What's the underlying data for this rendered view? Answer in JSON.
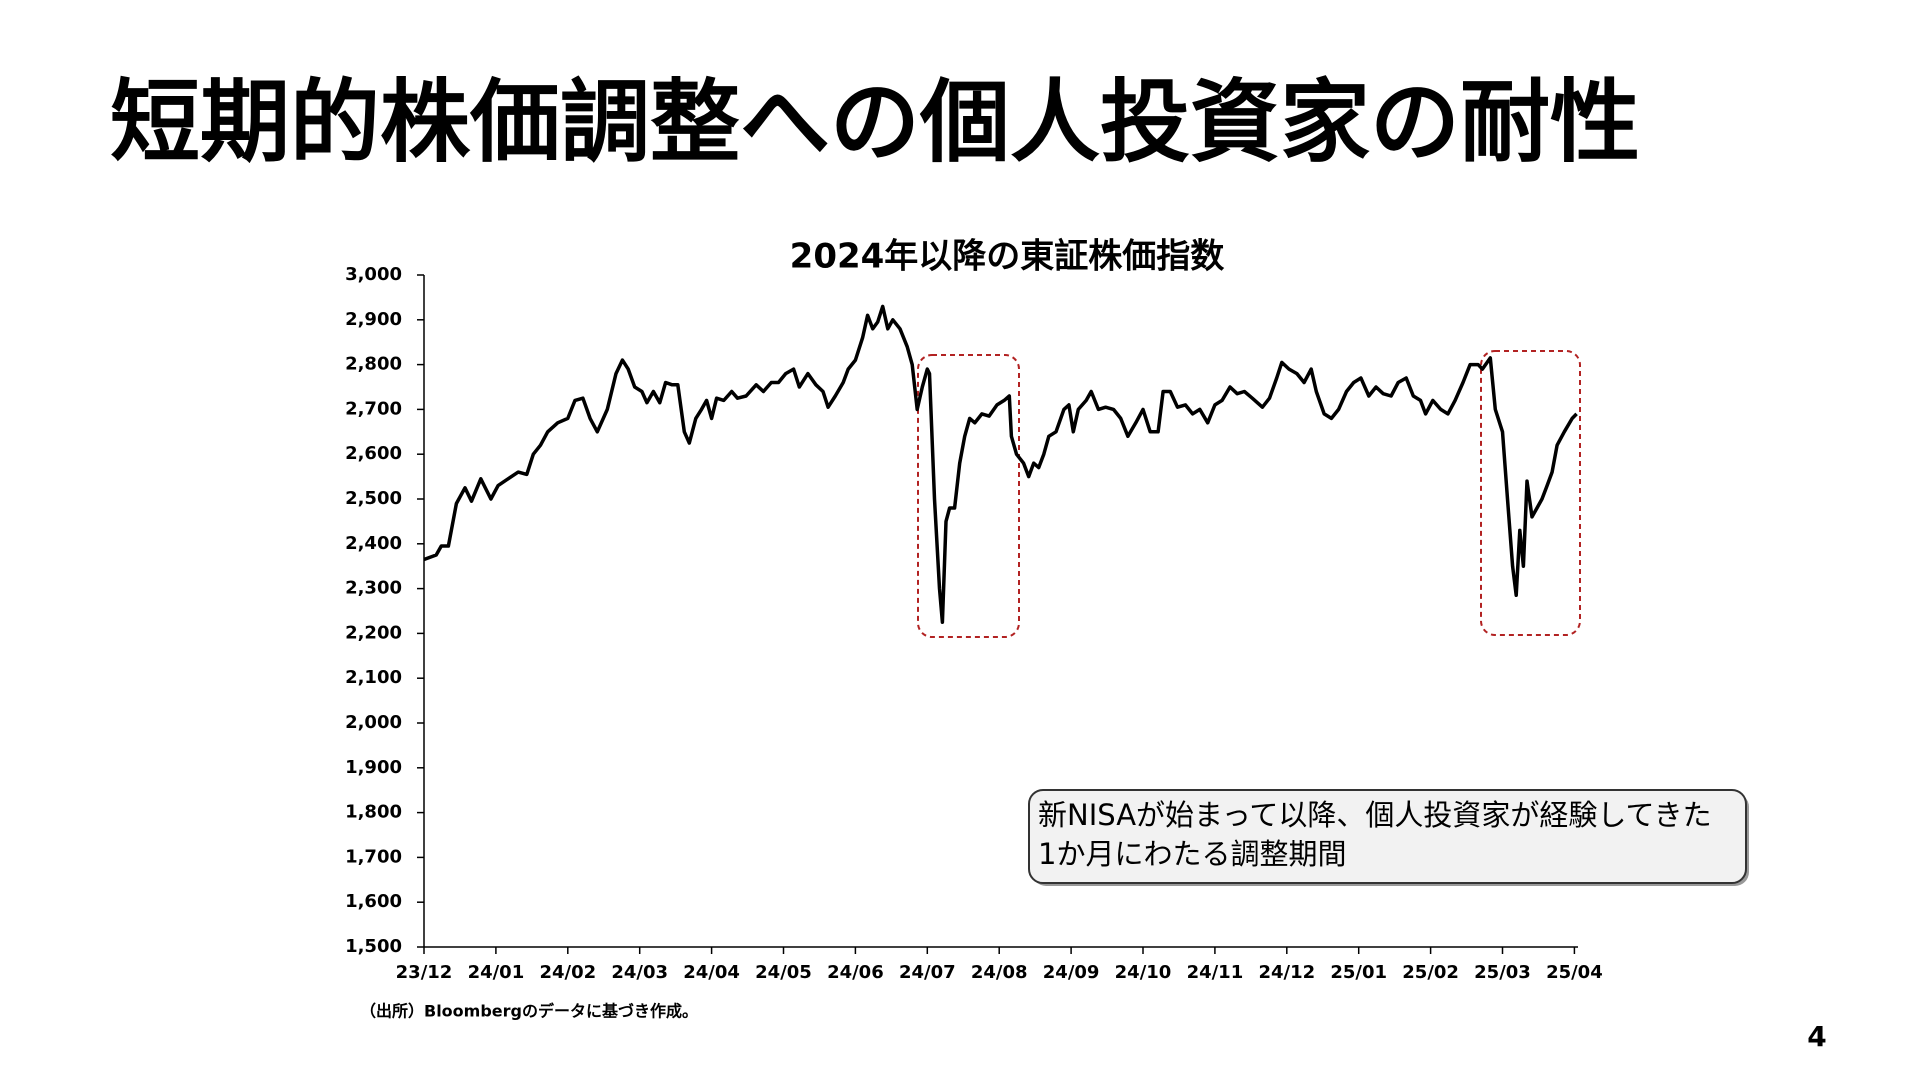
{
  "slide": {
    "title": "短期的株価調整への個人投資家の耐性",
    "source": "（出所）Bloombergのデータに基づき作成。",
    "page_number": 4
  },
  "chart_data": {
    "type": "line",
    "title": "2024年以降の東証株価指数",
    "color": "#000000",
    "annotation": [
      "新NISAが始まって以降、個人投資家が経験してきた",
      "1か月にわたる調整期間"
    ],
    "xlim": [
      0,
      16.05
    ],
    "xticks": [
      {
        "value": 0,
        "label": "23/12"
      },
      {
        "value": 1,
        "label": "24/01"
      },
      {
        "value": 2,
        "label": "24/02"
      },
      {
        "value": 3,
        "label": "24/03"
      },
      {
        "value": 4,
        "label": "24/04"
      },
      {
        "value": 5,
        "label": "24/05"
      },
      {
        "value": 6,
        "label": "24/06"
      },
      {
        "value": 7,
        "label": "24/07"
      },
      {
        "value": 8,
        "label": "24/08"
      },
      {
        "value": 9,
        "label": "24/09"
      },
      {
        "value": 10,
        "label": "24/10"
      },
      {
        "value": 11,
        "label": "24/11"
      },
      {
        "value": 12,
        "label": "24/12"
      },
      {
        "value": 13,
        "label": "25/01"
      },
      {
        "value": 14,
        "label": "25/02"
      },
      {
        "value": 15,
        "label": "25/03"
      },
      {
        "value": 16,
        "label": "25/04"
      }
    ],
    "ylim": [
      1500,
      3000
    ],
    "yticks": [
      {
        "value": 1500,
        "label": "1,500"
      },
      {
        "value": 1600,
        "label": "1,600"
      },
      {
        "value": 1700,
        "label": "1,700"
      },
      {
        "value": 1800,
        "label": "1,800"
      },
      {
        "value": 1900,
        "label": "1,900"
      },
      {
        "value": 2000,
        "label": "2,000"
      },
      {
        "value": 2100,
        "label": "2,100"
      },
      {
        "value": 2200,
        "label": "2,200"
      },
      {
        "value": 2300,
        "label": "2,300"
      },
      {
        "value": 2400,
        "label": "2,400"
      },
      {
        "value": 2500,
        "label": "2,500"
      },
      {
        "value": 2600,
        "label": "2,600"
      },
      {
        "value": 2700,
        "label": "2,700"
      },
      {
        "value": 2800,
        "label": "2,800"
      },
      {
        "value": 2900,
        "label": "2,900"
      },
      {
        "value": 3000,
        "label": "3,000"
      }
    ],
    "x": [
      0,
      0.17,
      0.24,
      0.34,
      0.45,
      0.57,
      0.66,
      0.79,
      0.93,
      1.03,
      1.17,
      1.31,
      1.43,
      1.52,
      1.62,
      1.72,
      1.86,
      2.0,
      2.1,
      2.21,
      2.31,
      2.41,
      2.55,
      2.67,
      2.76,
      2.84,
      2.93,
      3.03,
      3.1,
      3.19,
      3.28,
      3.36,
      3.45,
      3.53,
      3.62,
      3.69,
      3.78,
      3.86,
      3.93,
      4.0,
      4.07,
      4.17,
      4.28,
      4.36,
      4.48,
      4.62,
      4.72,
      4.83,
      4.93,
      5.03,
      5.14,
      5.22,
      5.34,
      5.45,
      5.55,
      5.62,
      5.72,
      5.83,
      5.9,
      6.0,
      6.1,
      6.17,
      6.24,
      6.31,
      6.38,
      6.45,
      6.52,
      6.62,
      6.72,
      6.79,
      6.86,
      6.93,
      7.0,
      7.03,
      7.1,
      7.17,
      7.21,
      7.26,
      7.31,
      7.38,
      7.45,
      7.52,
      7.59,
      7.66,
      7.76,
      7.86,
      7.97,
      8.07,
      8.14,
      8.17,
      8.24,
      8.34,
      8.41,
      8.48,
      8.55,
      8.62,
      8.69,
      8.79,
      8.9,
      8.97,
      9.03,
      9.1,
      9.21,
      9.28,
      9.38,
      9.48,
      9.59,
      9.69,
      9.79,
      9.9,
      10.0,
      10.1,
      10.21,
      10.28,
      10.38,
      10.48,
      10.59,
      10.69,
      10.79,
      10.9,
      11.0,
      11.1,
      11.21,
      11.31,
      11.41,
      11.52,
      11.66,
      11.76,
      11.86,
      11.93,
      12.03,
      12.14,
      12.24,
      12.34,
      12.41,
      12.52,
      12.62,
      12.72,
      12.83,
      12.93,
      13.03,
      13.14,
      13.24,
      13.34,
      13.45,
      13.55,
      13.66,
      13.76,
      13.86,
      13.93,
      14.03,
      14.14,
      14.24,
      14.34,
      14.45,
      14.55,
      14.66,
      14.72,
      14.83,
      14.9,
      15.0,
      15.07,
      15.14,
      15.19,
      15.24,
      15.29,
      15.34,
      15.41,
      15.48,
      15.55,
      15.62,
      15.69,
      15.76,
      15.86,
      15.97,
      16.03
    ],
    "values": [
      2365,
      2375,
      2395,
      2395,
      2490,
      2525,
      2495,
      2545,
      2500,
      2530,
      2545,
      2560,
      2555,
      2600,
      2620,
      2650,
      2670,
      2680,
      2720,
      2725,
      2680,
      2650,
      2700,
      2780,
      2810,
      2790,
      2750,
      2740,
      2715,
      2740,
      2715,
      2760,
      2755,
      2755,
      2650,
      2625,
      2680,
      2700,
      2720,
      2680,
      2725,
      2720,
      2740,
      2725,
      2730,
      2755,
      2740,
      2760,
      2760,
      2780,
      2790,
      2750,
      2780,
      2755,
      2740,
      2705,
      2730,
      2760,
      2790,
      2810,
      2860,
      2910,
      2880,
      2895,
      2930,
      2880,
      2900,
      2880,
      2840,
      2800,
      2700,
      2750,
      2790,
      2780,
      2500,
      2300,
      2225,
      2450,
      2480,
      2480,
      2580,
      2640,
      2680,
      2670,
      2690,
      2685,
      2710,
      2720,
      2730,
      2640,
      2600,
      2580,
      2550,
      2580,
      2570,
      2600,
      2640,
      2650,
      2700,
      2710,
      2650,
      2700,
      2720,
      2740,
      2700,
      2705,
      2700,
      2680,
      2640,
      2670,
      2700,
      2650,
      2650,
      2740,
      2740,
      2705,
      2710,
      2690,
      2700,
      2670,
      2710,
      2720,
      2750,
      2735,
      2740,
      2725,
      2705,
      2725,
      2770,
      2805,
      2790,
      2780,
      2760,
      2790,
      2740,
      2690,
      2680,
      2700,
      2740,
      2760,
      2770,
      2730,
      2750,
      2735,
      2730,
      2760,
      2770,
      2730,
      2720,
      2690,
      2720,
      2700,
      2690,
      2720,
      2760,
      2800,
      2800,
      2790,
      2815,
      2700,
      2650,
      2500,
      2350,
      2285,
      2430,
      2350,
      2540,
      2460,
      2480,
      2500,
      2530,
      2560,
      2620,
      2650,
      2680,
      2690
    ]
  }
}
